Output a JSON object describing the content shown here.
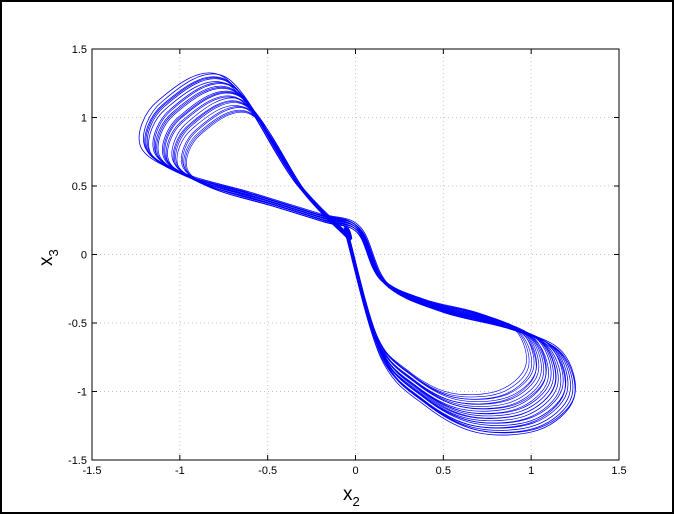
{
  "chart_data": {
    "type": "line",
    "title": "",
    "xlabel": {
      "base": "x",
      "subscript": "2"
    },
    "ylabel": {
      "base": "x",
      "subscript": "3"
    },
    "xlim": [
      -1.5,
      1.5
    ],
    "ylim": [
      -1.5,
      1.5
    ],
    "xticks": [
      "-1.5",
      "-1",
      "-0.5",
      "0",
      "0.5",
      "1",
      "1.5"
    ],
    "yticks": [
      "-1.5",
      "-1",
      "-0.5",
      "0",
      "0.5",
      "1",
      "1.5"
    ],
    "grid": true,
    "line_color": "#0000ff",
    "series": [
      {
        "x": [
          -0.05,
          -0.35,
          -0.75,
          -1.12,
          -1.22,
          -1.0,
          -0.6,
          -0.22,
          0.02,
          0.18,
          0.5,
          0.9,
          1.18,
          1.25,
          1.05,
          0.7,
          0.4,
          0.15,
          -0.05
        ],
        "y": [
          0.15,
          0.55,
          1.3,
          1.12,
          0.8,
          0.6,
          0.45,
          0.3,
          0.2,
          -0.22,
          -0.42,
          -0.55,
          -0.72,
          -1.05,
          -1.28,
          -1.3,
          -1.1,
          -0.75,
          0.15
        ]
      }
    ]
  }
}
